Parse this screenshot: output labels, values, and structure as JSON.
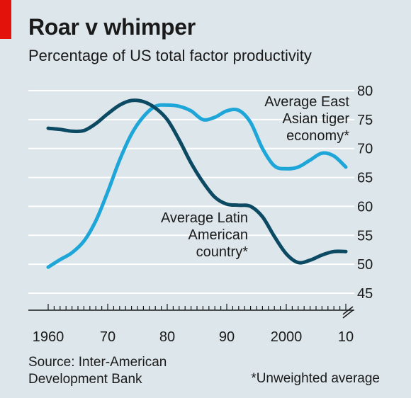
{
  "header": {
    "title": "Roar v whimper",
    "subtitle": "Percentage of US total factor productivity"
  },
  "footer": {
    "source": "Source: Inter-American\nDevelopment Bank",
    "note": "*Unweighted average"
  },
  "colors": {
    "background": "#dde6eb",
    "brand_tag": "#e3120b",
    "east_asia": "#1ea6d9",
    "latin_america": "#0c4a63",
    "grid": "#ffffff"
  },
  "chart_data": {
    "type": "line",
    "title": "Roar v whimper",
    "subtitle": "Percentage of US total factor productivity",
    "xlabel": "",
    "ylabel": "",
    "xlim": [
      1960,
      2010
    ],
    "ylim": [
      45,
      80
    ],
    "axis_break": true,
    "y_axis_side": "right",
    "grid": true,
    "x_ticks": [
      1960,
      1970,
      1980,
      1990,
      2000,
      2010
    ],
    "x_tick_labels": [
      "1960",
      "70",
      "80",
      "90",
      "2000",
      "10"
    ],
    "y_ticks": [
      45,
      50,
      55,
      60,
      65,
      70,
      75,
      80
    ],
    "y_tick_labels": [
      "45",
      "50",
      "55",
      "60",
      "65",
      "70",
      "75",
      "80"
    ],
    "series": [
      {
        "name": "Average East Asian tiger economy*",
        "label_lines": [
          "Average East",
          "Asian tiger",
          "economy*"
        ],
        "color": "#1ea6d9",
        "x": [
          1960,
          1962,
          1964,
          1966,
          1968,
          1970,
          1972,
          1974,
          1976,
          1978,
          1980,
          1982,
          1984,
          1986,
          1988,
          1990,
          1992,
          1994,
          1996,
          1998,
          2000,
          2002,
          2004,
          2006,
          2008,
          2010
        ],
        "values": [
          49.5,
          50.8,
          52,
          54,
          57.5,
          62.5,
          68,
          72.5,
          75.5,
          77.3,
          77.5,
          77.3,
          76.5,
          75,
          75.4,
          76.5,
          76.6,
          74.5,
          70,
          67,
          66.5,
          66.8,
          68,
          69.2,
          68.7,
          66.8
        ]
      },
      {
        "name": "Average Latin American country*",
        "label_lines": [
          "Average Latin",
          "American",
          "country*"
        ],
        "color": "#0c4a63",
        "x": [
          1960,
          1962,
          1964,
          1966,
          1968,
          1970,
          1972,
          1974,
          1976,
          1978,
          1980,
          1982,
          1984,
          1986,
          1988,
          1990,
          1992,
          1994,
          1996,
          1998,
          2000,
          2002,
          2004,
          2006,
          2008,
          2010
        ],
        "values": [
          73.5,
          73.3,
          73,
          73.1,
          74.3,
          76,
          77.5,
          78.3,
          78.1,
          77,
          75,
          71.5,
          67.5,
          64.2,
          61.6,
          60.4,
          60.2,
          60,
          58.2,
          54.8,
          51.8,
          50.3,
          50.7,
          51.6,
          52.2,
          52.2
        ]
      }
    ]
  }
}
